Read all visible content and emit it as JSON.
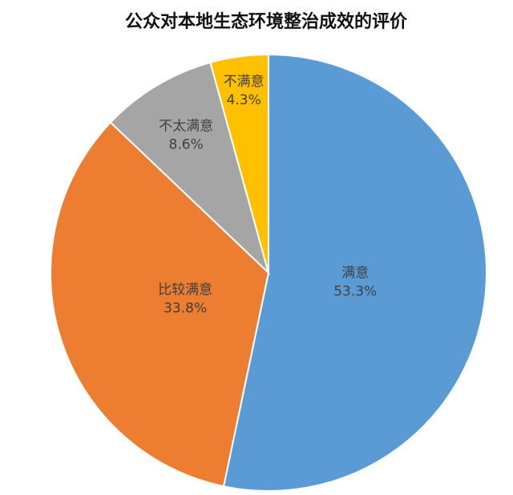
{
  "chart_data": {
    "type": "pie",
    "title": "公众对本地生态环境整治成效的评价",
    "categories": [
      "满意",
      "比较满意",
      "不太满意",
      "不满意"
    ],
    "values": [
      53.3,
      33.8,
      8.6,
      4.3
    ],
    "value_labels": [
      "53.3%",
      "33.8%",
      "8.6%",
      "4.3%"
    ],
    "colors": [
      "#5b9bd5",
      "#ed7d31",
      "#a5a5a5",
      "#ffc000"
    ]
  }
}
